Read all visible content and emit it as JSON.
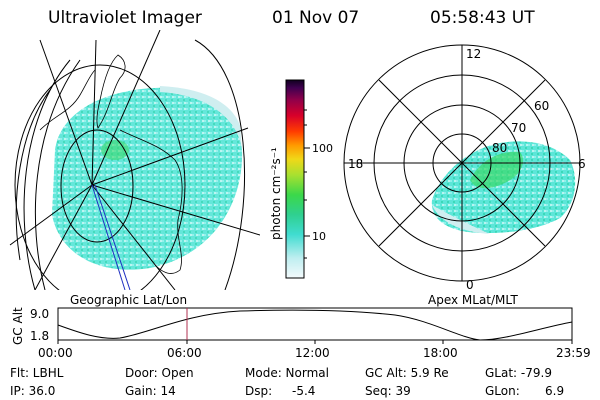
{
  "header": {
    "instrument": "Ultraviolet Imager",
    "date": "01 Nov 07",
    "time": "05:58:43 UT"
  },
  "left_map": {
    "caption": "Geographic Lat/Lon"
  },
  "colorbar": {
    "unit_label": "photon cm⁻²s⁻¹",
    "tick_100": "100",
    "tick_10": "10",
    "scale": "log",
    "colors": [
      "#e8f4f8",
      "#5ce6e0",
      "#2fd3b0",
      "#3bd86a",
      "#7be04a",
      "#c8e832",
      "#f0d020",
      "#ff9a00",
      "#ff4a00",
      "#e0002a",
      "#a00040",
      "#5a0050",
      "#1a0030"
    ]
  },
  "right_polar": {
    "caption": "Apex MLat/MLT",
    "mlt_labels": {
      "top": "12",
      "left": "18",
      "right": "6",
      "bottom": "0"
    },
    "lat_labels": [
      "60",
      "70",
      "80"
    ]
  },
  "altitude_plot": {
    "ylabel": "GC Alt",
    "ytick_top": "9.0",
    "ytick_bottom": "1.8",
    "xticks": [
      "00:00",
      "06:00",
      "12:00",
      "18:00",
      "23:59"
    ]
  },
  "info": {
    "filter": "Flt: LBHL",
    "door": "Door: Open",
    "mode": "Mode: Normal",
    "gc_alt": "GC Alt: 5.9 Re",
    "glat": "GLat: -79.9",
    "ip": "IP: 36.0",
    "gain": "Gain: 14",
    "dsp_label": "Dsp:",
    "dsp_value": "-5.4",
    "seq": "Seq: 39",
    "glon": "GLon:",
    "glon_value": "6.9"
  },
  "colors": {
    "aurora_cyan": "#5ce6d8",
    "aurora_green": "#3bd86a",
    "aurora_pale": "#cfeef0",
    "current_time_marker": "#b03050"
  }
}
